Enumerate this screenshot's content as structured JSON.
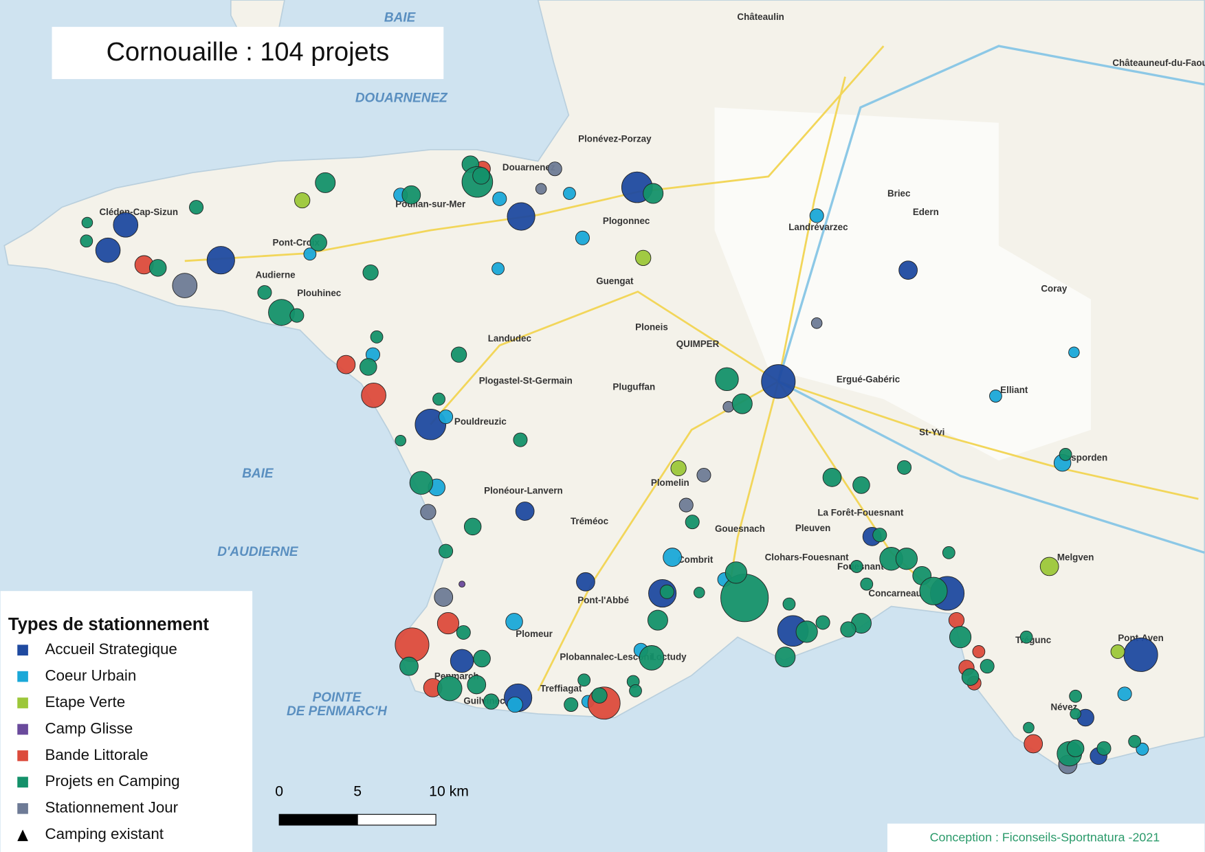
{
  "header": {
    "title": "Cornouaille : 104 projets"
  },
  "legend": {
    "title": "Types de stationnement",
    "items": [
      {
        "label": "Accueil Strategique",
        "color": "#1f4aa0"
      },
      {
        "label": "Coeur Urbain",
        "color": "#1aa8d8"
      },
      {
        "label": "Etape Verte",
        "color": "#9cc73a"
      },
      {
        "label": "Camp Glisse",
        "color": "#6a4a9c"
      },
      {
        "label": "Bande Littorale",
        "color": "#dc4b3c"
      },
      {
        "label": "Projets en Camping",
        "color": "#14916a"
      },
      {
        "label": "Stationnement Jour",
        "color": "#6e7b96"
      },
      {
        "label": "Camping existant",
        "color": "#000000"
      }
    ]
  },
  "scale": {
    "labels": [
      "0",
      "5",
      "10 km"
    ]
  },
  "credit": "Conception : Ficonseils-Sportnatura -2021",
  "sea_labels": [
    {
      "label": "BAIE"
    },
    {
      "label": "DOUARNENEZ"
    },
    {
      "label": "BAIE"
    },
    {
      "label": "D'AUDIERNE"
    },
    {
      "label": "POINTE"
    },
    {
      "label": "DE PENMARC'H"
    }
  ],
  "places": [
    {
      "label": "Châteaulin"
    },
    {
      "label": "Douarnenez"
    },
    {
      "label": "Cléden-Cap-Sizun"
    },
    {
      "label": "Audierne"
    },
    {
      "label": "Plouhinec"
    },
    {
      "label": "Pont-Croix"
    },
    {
      "label": "Poullan-sur-Mer"
    },
    {
      "label": "Plogonnec"
    },
    {
      "label": "Briec"
    },
    {
      "label": "Edern"
    },
    {
      "label": "Landrévarzec"
    },
    {
      "label": "Guengat"
    },
    {
      "label": "QUIMPER"
    },
    {
      "label": "Ergué-Gabéric"
    },
    {
      "label": "Elliant"
    },
    {
      "label": "Landudec"
    },
    {
      "label": "Plogastel-St-Germain"
    },
    {
      "label": "Pluguffan"
    },
    {
      "label": "Pouldreuzic"
    },
    {
      "label": "Plonéour-Lanvern"
    },
    {
      "label": "Tréméoc"
    },
    {
      "label": "Plomelin"
    },
    {
      "label": "Gouesnach"
    },
    {
      "label": "Pleuven"
    },
    {
      "label": "Clohars-Fouesnant"
    },
    {
      "label": "La Forêt-Fouesnant"
    },
    {
      "label": "Fouesnant"
    },
    {
      "label": "Concarneau"
    },
    {
      "label": "Rosporden"
    },
    {
      "label": "Melgven"
    },
    {
      "label": "Trégunc"
    },
    {
      "label": "Névez"
    },
    {
      "label": "Pont-Aven"
    },
    {
      "label": "Pont-l'Abbé"
    },
    {
      "label": "Plomeur"
    },
    {
      "label": "Penmarch"
    },
    {
      "label": "Guilvinec"
    },
    {
      "label": "Treffiagat"
    },
    {
      "label": "Plobannalec-Lesconil"
    },
    {
      "label": "Loctudy"
    },
    {
      "label": "Combrit"
    },
    {
      "label": "St-Yvi"
    },
    {
      "label": "Coray"
    },
    {
      "label": "Châteauneuf-du-Faou"
    },
    {
      "label": "Plonévez-Porzay"
    },
    {
      "label": "Ploneis"
    },
    {
      "label": "Rosporden"
    }
  ]
}
